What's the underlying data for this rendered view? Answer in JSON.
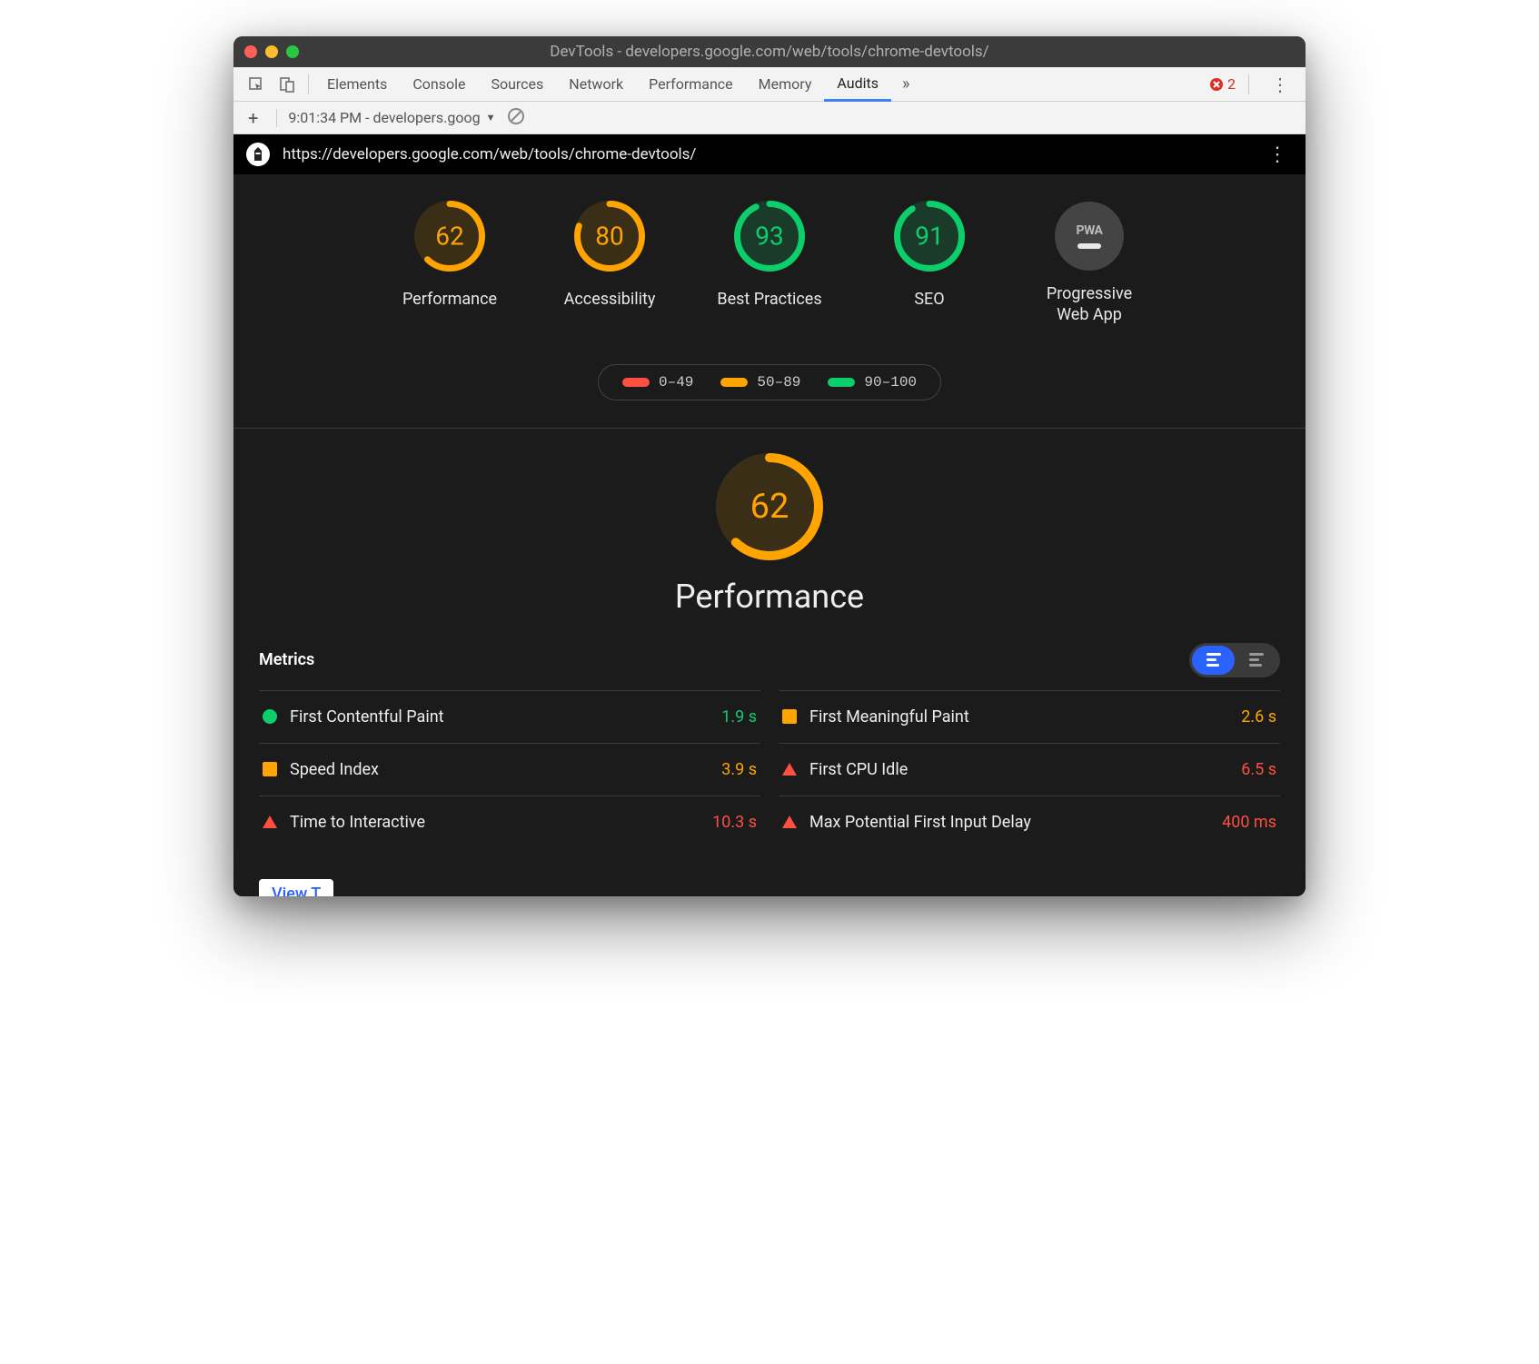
{
  "window": {
    "title": "DevTools - developers.google.com/web/tools/chrome-devtools/",
    "traffic_colors": {
      "close": "#ff5f57",
      "minimize": "#ffbd2e",
      "zoom": "#28c940"
    }
  },
  "tabbar": {
    "tabs": [
      "Elements",
      "Console",
      "Sources",
      "Network",
      "Performance",
      "Memory",
      "Audits"
    ],
    "active_tab": "Audits",
    "overflow_glyph": "»",
    "error_count": 2,
    "error_color": "#d93025"
  },
  "secondbar": {
    "plus_glyph": "+",
    "report_label": "9:01:34 PM - developers.goog",
    "clear_icon_color": "#888"
  },
  "urlbar": {
    "url": "https://developers.google.com/web/tools/chrome-devtools/"
  },
  "score_colors": {
    "fail": "#ff4e42",
    "average": "#ffa400",
    "pass": "#0cce6b"
  },
  "gauges": [
    {
      "label": "Performance",
      "score": 62,
      "color": "#ffa400",
      "bg": "#3a2e17"
    },
    {
      "label": "Accessibility",
      "score": 80,
      "color": "#ffa400",
      "bg": "#3a2e17"
    },
    {
      "label": "Best Practices",
      "score": 93,
      "color": "#0cce6b",
      "bg": "#1a3a2a"
    },
    {
      "label": "SEO",
      "score": 91,
      "color": "#0cce6b",
      "bg": "#1a3a2a"
    }
  ],
  "pwa": {
    "label": "Progressive Web App",
    "badge_text": "PWA",
    "circle_bg": "#444444"
  },
  "legend": [
    {
      "range": "0–49",
      "color": "#ff4e42"
    },
    {
      "range": "50–89",
      "color": "#ffa400"
    },
    {
      "range": "90–100",
      "color": "#0cce6b"
    }
  ],
  "performance_section": {
    "score": 62,
    "color": "#ffa400",
    "bg": "#3a2e17",
    "title": "Performance"
  },
  "metrics_header": {
    "label": "Metrics",
    "toggle_active_bg": "#2962ff"
  },
  "metrics": [
    {
      "name": "First Contentful Paint",
      "value": "1.9 s",
      "status": "pass",
      "shape": "circle",
      "status_color": "#0cce6b",
      "value_color": "#0cce6b"
    },
    {
      "name": "First Meaningful Paint",
      "value": "2.6 s",
      "status": "average",
      "shape": "square",
      "status_color": "#ffa400",
      "value_color": "#ffa400"
    },
    {
      "name": "Speed Index",
      "value": "3.9 s",
      "status": "average",
      "shape": "square",
      "status_color": "#ffa400",
      "value_color": "#ffa400"
    },
    {
      "name": "First CPU Idle",
      "value": "6.5 s",
      "status": "fail",
      "shape": "triangle",
      "status_color": "#ff4e42",
      "value_color": "#ff4e42"
    },
    {
      "name": "Time to Interactive",
      "value": "10.3 s",
      "status": "fail",
      "shape": "triangle",
      "status_color": "#ff4e42",
      "value_color": "#ff4e42"
    },
    {
      "name": "Max Potential First Input Delay",
      "value": "400 ms",
      "status": "fail",
      "shape": "triangle",
      "status_color": "#ff4e42",
      "value_color": "#ff4e42"
    }
  ],
  "clipped_button_label": "View T",
  "theme": {
    "window_bg": "#1b1b1b",
    "titlebar_bg": "#3b3b3b",
    "chrome_bg": "#f3f3f3",
    "urlbar_bg": "#000000",
    "text": "#e8e8e8",
    "divider": "#3a3a3a",
    "tab_active_underline": "#3b82f6"
  }
}
